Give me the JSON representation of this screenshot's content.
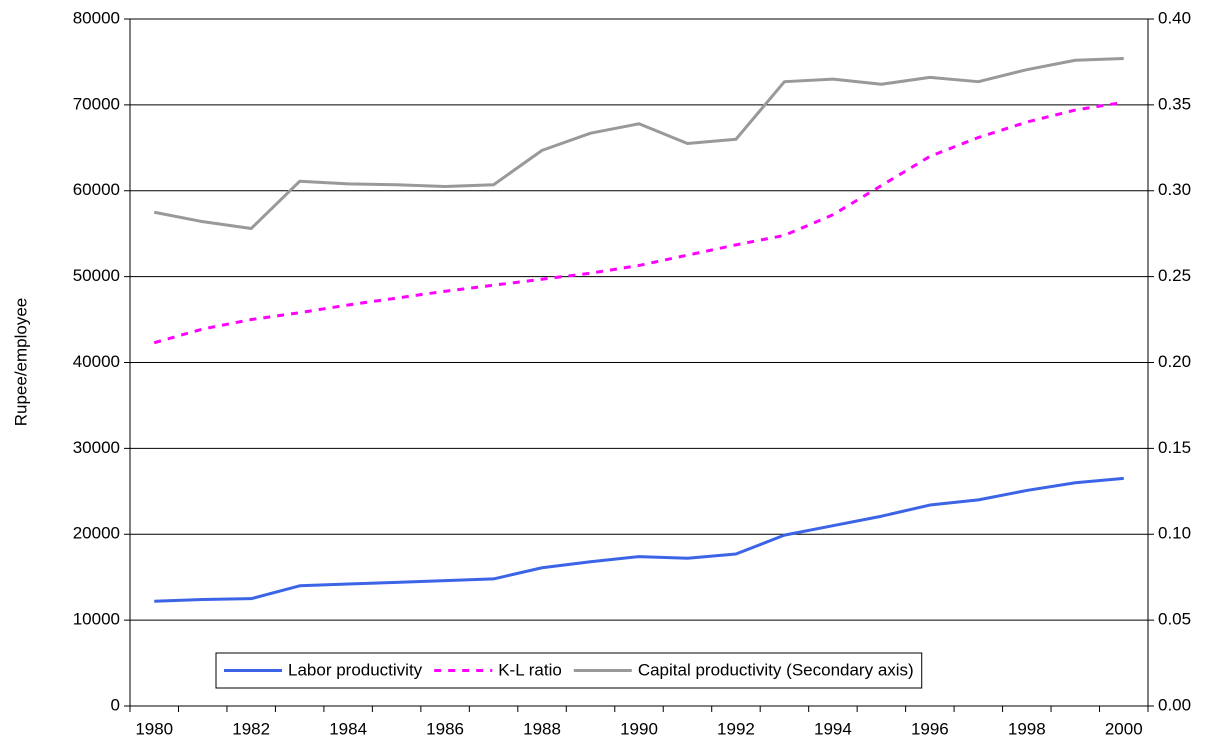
{
  "chart_data": {
    "type": "line",
    "y_label": "Rupee/employee",
    "categories": [
      "1980",
      null,
      "1982",
      null,
      "1984",
      null,
      "1986",
      null,
      "1988",
      null,
      "1990",
      null,
      "1992",
      null,
      "1994",
      null,
      "1996",
      null,
      "1998",
      null,
      "2000"
    ],
    "ylim": [
      0,
      80000
    ],
    "yticks": [
      0,
      10000,
      20000,
      30000,
      40000,
      50000,
      60000,
      70000,
      80000
    ],
    "y2lim": [
      0,
      0.4
    ],
    "y2ticks": [
      {
        "value": 0,
        "label": "0.00"
      },
      0.05,
      {
        "value": 0.1,
        "label": "0.10"
      },
      0.15,
      {
        "value": 0.2,
        "label": "0.20"
      },
      0.25,
      {
        "value": 0.3,
        "label": "0.30"
      },
      0.35,
      {
        "value": 0.4,
        "label": "0.40"
      }
    ],
    "grid": true,
    "legend": "bottom",
    "series": [
      {
        "name": "Labor productivity",
        "color": "#3c64e6",
        "dash": false,
        "values": [
          12200,
          12400,
          12500,
          14000,
          14200,
          14400,
          14600,
          14800,
          16100,
          16800,
          17400,
          17200,
          17700,
          19900,
          21000,
          22100,
          23400,
          24000,
          25100,
          26000,
          26500
        ]
      },
      {
        "name": "K-L ratio",
        "color": "#ff00ff",
        "dash": true,
        "values": [
          42300,
          43900,
          45000,
          45800,
          46700,
          47500,
          48300,
          49000,
          49700,
          50400,
          51300,
          52500,
          53700,
          54800,
          57200,
          60600,
          64000,
          66200,
          68000,
          69400,
          70300
        ]
      },
      {
        "name": "Capital productivity (Secondary axis)",
        "color": "#999999",
        "dash": false,
        "axis": "y2",
        "values": [
          0.2875,
          0.282,
          0.278,
          0.3055,
          0.304,
          0.3035,
          0.3025,
          0.3035,
          0.3235,
          0.3335,
          0.339,
          0.3275,
          0.33,
          0.3635,
          0.365,
          0.362,
          0.366,
          0.3635,
          0.3705,
          0.376,
          0.377
        ]
      }
    ]
  }
}
